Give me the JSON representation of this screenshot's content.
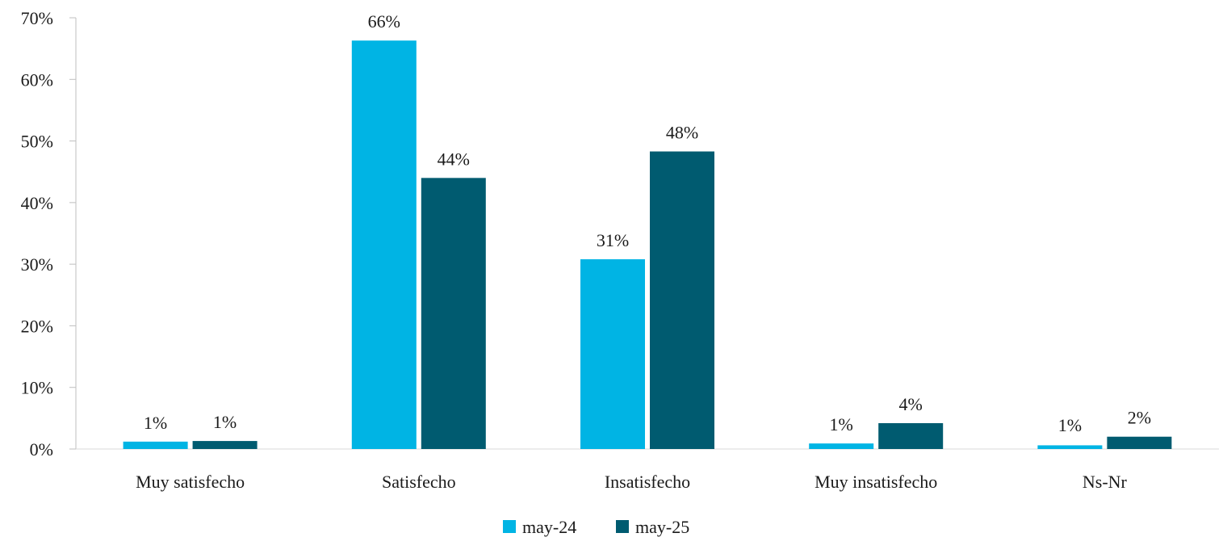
{
  "chart_data": {
    "type": "bar",
    "categories": [
      "Muy satisfecho",
      "Satisfecho",
      "Insatisfecho",
      "Muy insatisfecho",
      "Ns-Nr"
    ],
    "series": [
      {
        "name": "may-24",
        "color": "#00B4E4",
        "values": [
          1.2,
          66.3,
          30.8,
          0.9,
          0.6
        ],
        "labels": [
          "1%",
          "66%",
          "31%",
          "1%",
          "1%"
        ]
      },
      {
        "name": "may-25",
        "color": "#005B70",
        "values": [
          1.3,
          44.0,
          48.3,
          4.2,
          2.0
        ],
        "labels": [
          "1%",
          "44%",
          "48%",
          "4%",
          "2%"
        ]
      }
    ],
    "ylim": [
      0,
      70
    ],
    "yticks": [
      "0%",
      "10%",
      "20%",
      "30%",
      "40%",
      "50%",
      "60%",
      "70%"
    ],
    "grid": false,
    "legend_position": "bottom"
  }
}
